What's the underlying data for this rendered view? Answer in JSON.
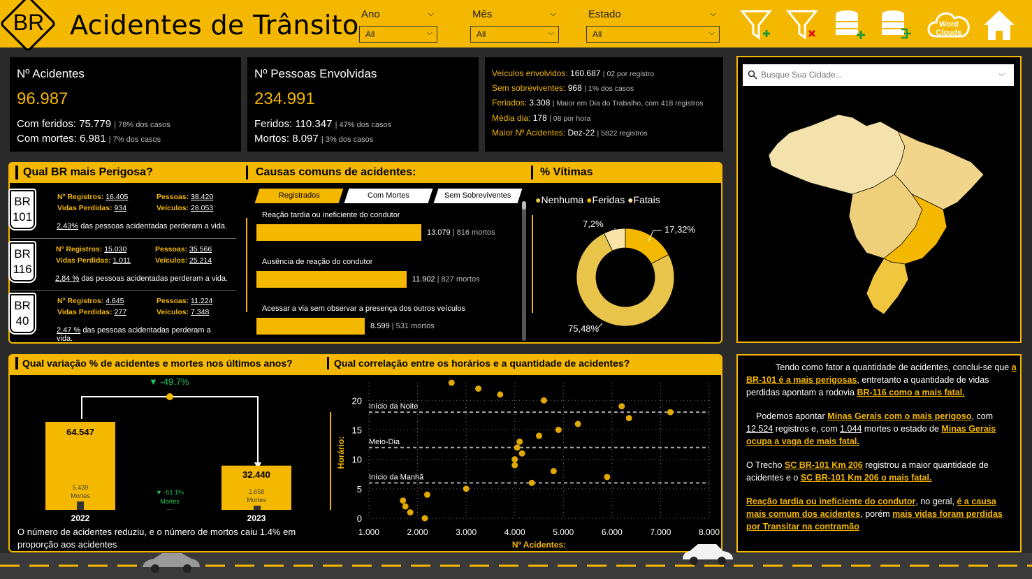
{
  "header": {
    "logo": "BR",
    "title": "Acidentes de Trânsito",
    "filters": [
      {
        "label": "Ano",
        "value": "All"
      },
      {
        "label": "Mês",
        "value": "All"
      },
      {
        "label": "Estado",
        "value": "All"
      }
    ],
    "icons": [
      "filter-add-icon",
      "filter-clear-icon",
      "database-add-icon",
      "database-export-icon",
      "word-clouds-icon",
      "home-icon"
    ],
    "word_clouds": "Word Clouds"
  },
  "kpi1": {
    "title": "Nº Acidentes",
    "value": "96.987",
    "l1_label": "Com feridos:",
    "l1_value": "75.779",
    "l1_note": "| 78% dos casos",
    "l2_label": "Com mortes:",
    "l2_value": "6.981",
    "l2_note": "| 7% dos casos"
  },
  "kpi2": {
    "title": "Nº Pessoas Envolvidas",
    "value": "234.991",
    "l1_label": "Feridos:",
    "l1_value": "110.347",
    "l1_note": "| 47% dos casos",
    "l2_label": "Mortos:",
    "l2_value": "8.097",
    "l2_note": "| 3% dos casos"
  },
  "info": [
    {
      "k": "Veículos envolvidos:",
      "v": "160.687",
      "n": "| 02 por registro"
    },
    {
      "k": "Sem sobreviventes:",
      "v": "968",
      "n": "| 1% dos casos"
    },
    {
      "k": "Feriados:",
      "v": "3.308",
      "n": "| Maior em Dia do Trabalho, com 418 registros"
    },
    {
      "k": "Média dia:",
      "v": "178",
      "n": "| 08 por hora"
    },
    {
      "k": "Maior Nº Acidentes:",
      "v": "Dez-22",
      "n": "| 5822 registros"
    }
  ],
  "br_section": {
    "title": "Qual BR mais Perigosa?",
    "cards": [
      {
        "br": "BR",
        "num": "101",
        "reg_l": "Nº Registros:",
        "reg": "16.405",
        "pes_l": "Pessoas:",
        "pes": "38.420",
        "vid_l": "Vidas Perdidas:",
        "vid": "934",
        "vei_l": "Veículos:",
        "vei": "28.053",
        "pct": "2,43%",
        "pct_text": "das pessoas acidentadas perderam a vida."
      },
      {
        "br": "BR",
        "num": "116",
        "reg_l": "Nº Registros:",
        "reg": "15.030",
        "pes_l": "Pessoas:",
        "pes": "35.566",
        "vid_l": "Vidas Perdidas:",
        "vid": "1.011",
        "vei_l": "Veículos:",
        "vei": "25.214",
        "pct": "2,84 %",
        "pct_text": "das pessoas acidentadas perderam a vida."
      },
      {
        "br": "BR",
        "num": "40",
        "reg_l": "Nº Registros:",
        "reg": "4.645",
        "pes_l": "Pessoas:",
        "pes": "11.224",
        "vid_l": "Vidas Perdidas:",
        "vid": "277",
        "vei_l": "Veículos:",
        "vei": "7.348",
        "pct": "2,47 %",
        "pct_text": "das pessoas acidentadas perderam a vida."
      }
    ]
  },
  "causes": {
    "title": "Causas comuns de acidentes:",
    "tabs": [
      "Registrados",
      "Com Mortes",
      "Sem Sobreviventes"
    ],
    "items": [
      {
        "label": "Reação tardia ou ineficiente do condutor",
        "value": 13079,
        "value_text": "13.079",
        "note": "| 816 mortos"
      },
      {
        "label": "Ausência de reação do condutor",
        "value": 11902,
        "value_text": "11.902",
        "note": "| 827 mortos"
      },
      {
        "label": "Acessar a via sem observar a presença dos outros veículos",
        "value": 8599,
        "value_text": "8.599",
        "note": "| 531 mortos"
      }
    ]
  },
  "victims": {
    "title": "% Vítimas",
    "legend": [
      "Nenhuma",
      "Feridas",
      "Fatais"
    ],
    "labels": {
      "nenhuma": "75,48%",
      "feridas": "17,32%",
      "fatais": "7,2%"
    },
    "colors": {
      "nenhuma": "#e8c44a",
      "feridas": "#f5b800",
      "fatais": "#f7e4a6"
    }
  },
  "variation": {
    "title": "Qual variação % de acidentes e mortes nos últimos anos?",
    "change_top": "▼ -49.7%",
    "change_mid": "▼ -51.1%",
    "change_mid_label": "Mortes",
    "bars": [
      {
        "year": "2022",
        "value": 64547,
        "value_text": "64.547",
        "deaths": "5.439",
        "deaths_label": "Mortes"
      },
      {
        "year": "2023",
        "value": 32440,
        "value_text": "32.440",
        "deaths": "2.658",
        "deaths_label": "Mortes"
      }
    ],
    "note": "O número de acidentes reduziu, e o número de mortos caiu 1.4% em proporção aos acidentes"
  },
  "correlation": {
    "title": "Qual correlação entre os horários e a quantidade de acidentes?"
  },
  "chart_data": {
    "type": "scatter",
    "xlabel": "Nº Acidentes:",
    "ylabel": "Horário:",
    "xlim": [
      1000,
      8000
    ],
    "ylim": [
      0,
      23
    ],
    "xticks": [
      "1.000",
      "2.000",
      "3.000",
      "4.000",
      "5.000",
      "6.000",
      "7.000",
      "8.000"
    ],
    "yticks": [
      "0",
      "5",
      "10",
      "15",
      "20"
    ],
    "reference_lines": [
      {
        "y": 18,
        "label": "Início da Noite"
      },
      {
        "y": 12,
        "label": "Meio-Dia"
      },
      {
        "y": 6,
        "label": "Início da Manhã"
      }
    ],
    "points": [
      [
        2150,
        0
      ],
      [
        1850,
        1
      ],
      [
        1750,
        2
      ],
      [
        1700,
        3
      ],
      [
        2200,
        4
      ],
      [
        3000,
        5
      ],
      [
        4350,
        6
      ],
      [
        5900,
        7
      ],
      [
        4000,
        9
      ],
      [
        4800,
        8
      ],
      [
        4000,
        10
      ],
      [
        4150,
        11
      ],
      [
        4050,
        12
      ],
      [
        4100,
        13
      ],
      [
        4500,
        14
      ],
      [
        4900,
        15
      ],
      [
        5300,
        16
      ],
      [
        6350,
        17
      ],
      [
        7200,
        18
      ],
      [
        6200,
        19
      ],
      [
        4600,
        20
      ],
      [
        3700,
        21
      ],
      [
        3250,
        22
      ],
      [
        2700,
        23
      ]
    ]
  },
  "map": {
    "search_placeholder": "Busque Sua Cidade..."
  },
  "conclusion": {
    "p1a": "Tendo como fator a quantidade de acidentes, conclui-se que",
    "p1b": "a BR-101 é a mais perigosas",
    "p1c": ", entretanto a quantidade de vidas perdidas apontam a rodovia",
    "p1d": "BR-116 como a mais fatal.",
    "p2a": "Podemos apontar",
    "p2b": "Minas Gerais com o mais perigoso",
    "p2c": ", com",
    "p2d": "12.524",
    "p2e": "registros e, com",
    "p2f": "1.044",
    "p2g": "mortes o estado de",
    "p2h": "Minas Gerais ocupa a vaga de mais fatal.",
    "p3a": "O Trecho",
    "p3b": "SC BR-101 Km 206",
    "p3c": "registrou a maior quantidade de acidentes e o",
    "p3d": "SC BR-101 Km 206 o mais fatal.",
    "p4a": "Reação tardia ou ineficiente do condutor",
    "p4b": ", no geral,",
    "p4c": "é a causa mais comum dos acidentes",
    "p4d": ", porém",
    "p4e": "mais vidas foram perdidas por Transitar na contramão"
  }
}
